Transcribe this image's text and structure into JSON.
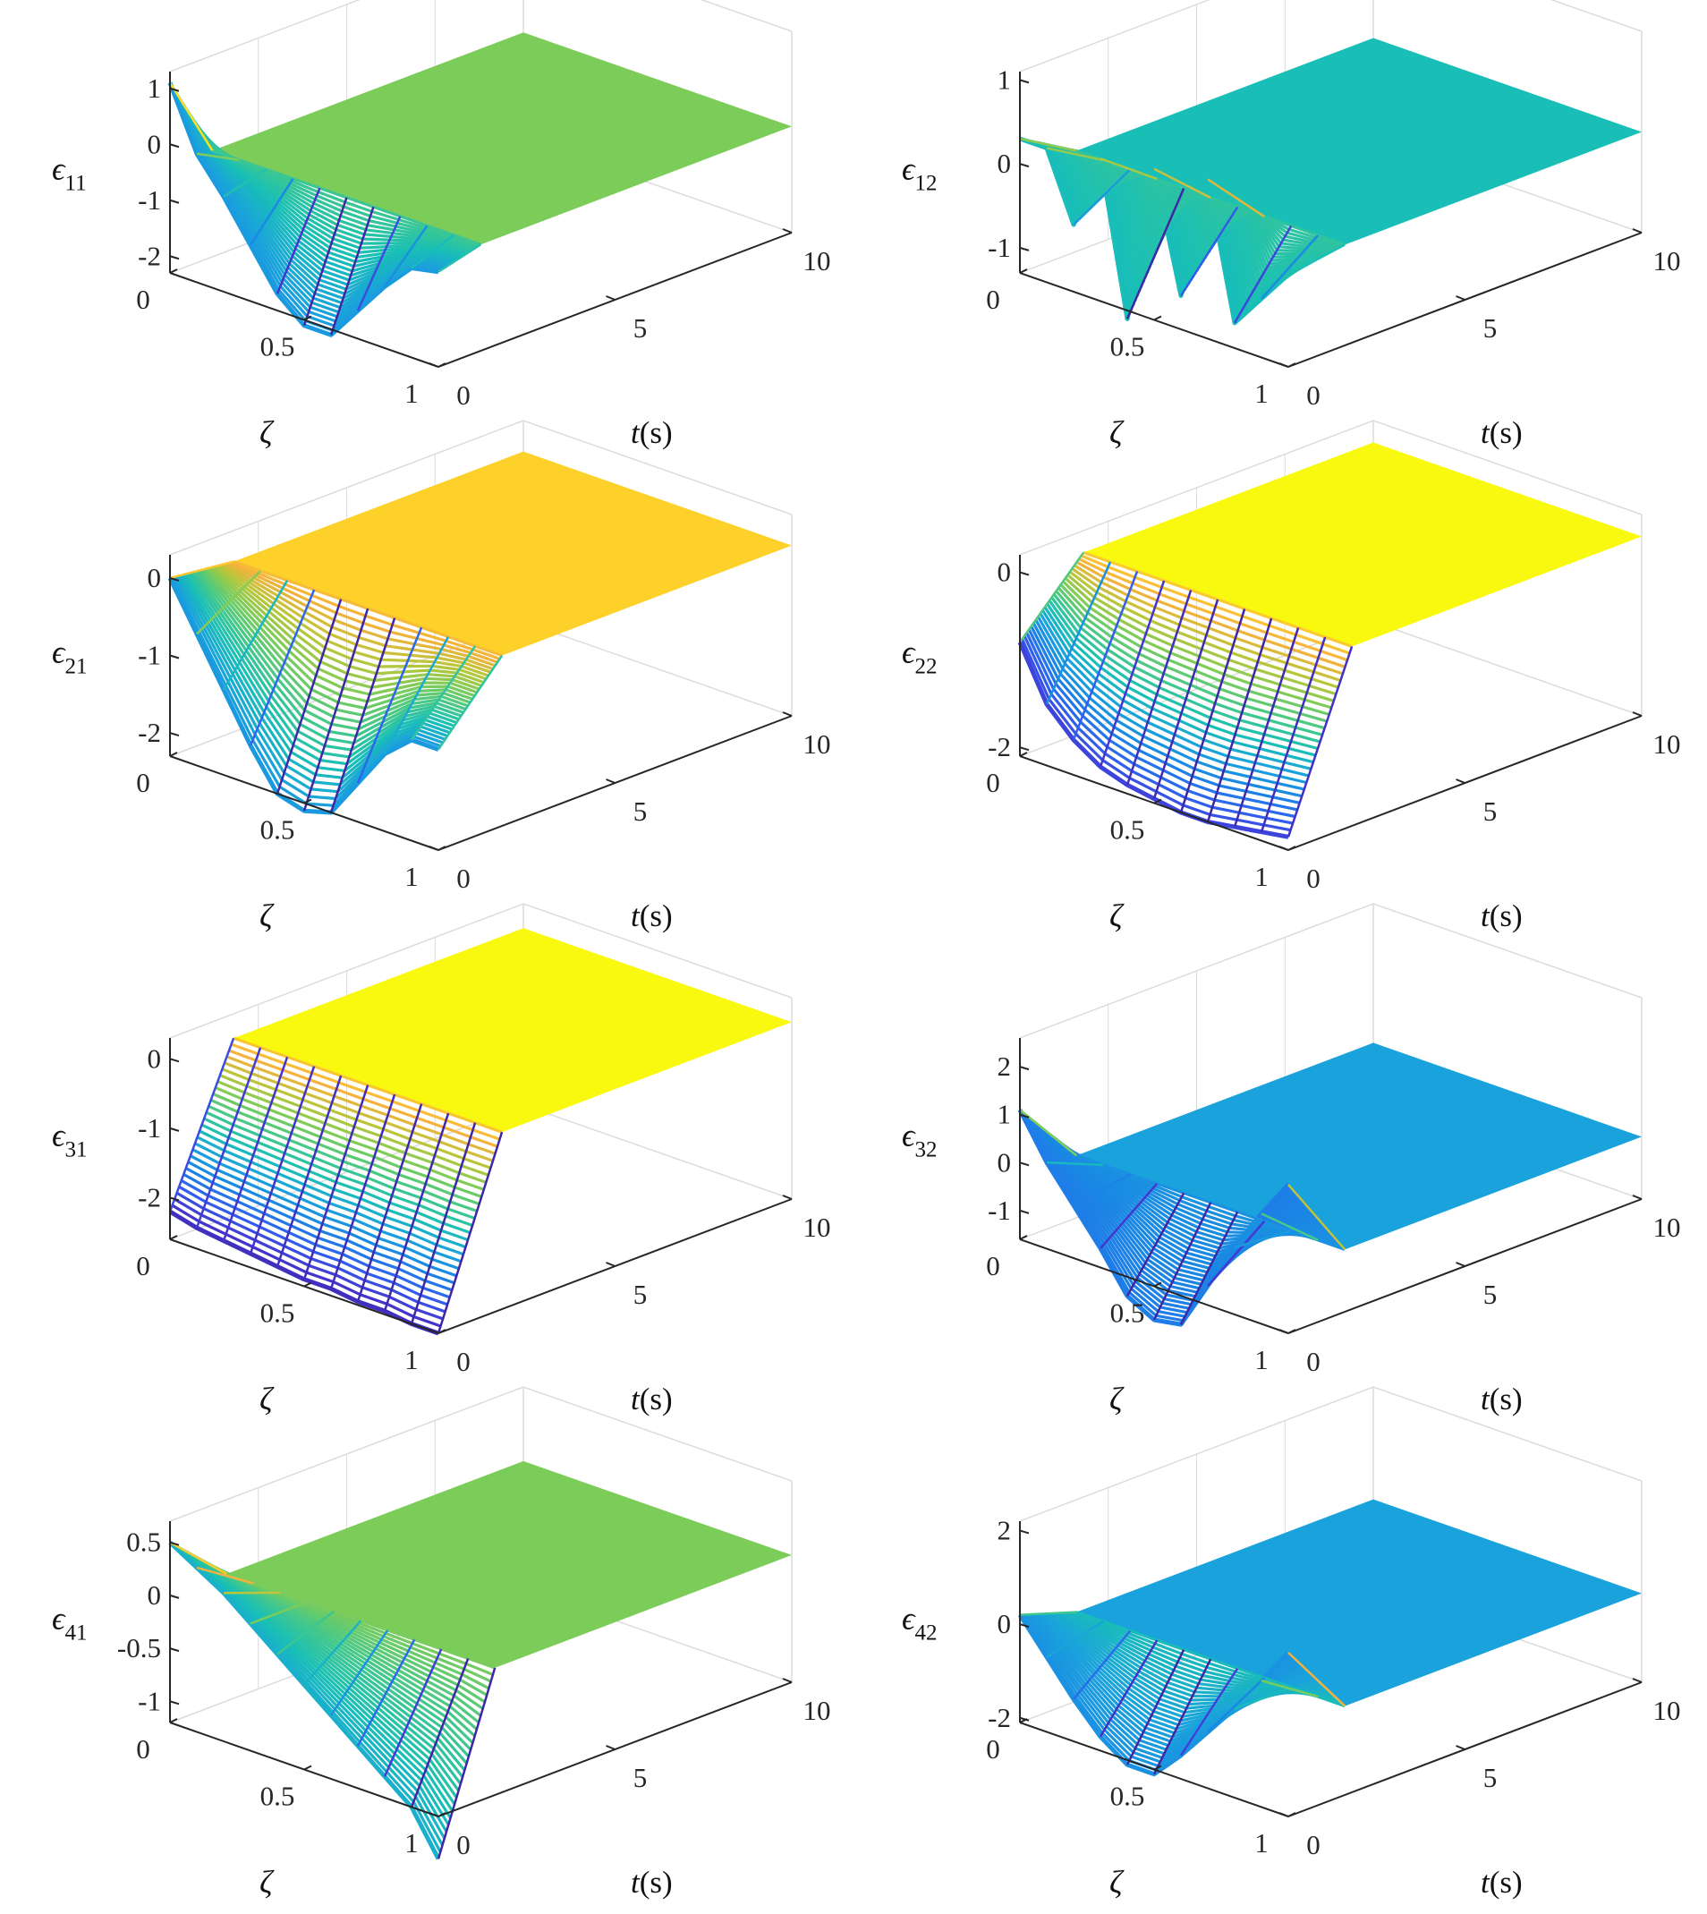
{
  "figure": {
    "colors": {
      "plum": "#3e26a8",
      "blue": "#2f62f0",
      "sky": "#1aa2dc",
      "teal": "#19bfb6",
      "green": "#7ccc5a",
      "orange": "#f5b13c",
      "gold": "#fdd02a",
      "yellow": "#f9f910",
      "grid": "#dcdcdc",
      "axis": "#262626"
    }
  },
  "chart_data": [
    {
      "type": "surface",
      "ylabel_symbol": "ϵ",
      "ylabel_subscript": "11",
      "xlabel_symbol": "ζ",
      "xlabel_time": "t",
      "xlabel_unit": "(s)",
      "zeta_ticks": [
        "0",
        "0.5",
        "1"
      ],
      "t_ticks": [
        "0",
        "5",
        "10"
      ],
      "z_ticks": [
        "1",
        "0",
        "-1",
        "-2"
      ],
      "z_range": [
        -2.3,
        1.3
      ],
      "steady_value": -0.4,
      "steady_color": "green",
      "zeta_samples": [
        0,
        0.1,
        0.2,
        0.3,
        0.4,
        0.5,
        0.6,
        0.7,
        0.8,
        0.9,
        1
      ],
      "initial_profile": [
        1.1,
        0.0,
        -0.6,
        -1.3,
        -2.0,
        -2.4,
        -2.4,
        -1.8,
        -1.2,
        -0.7,
        -0.6
      ],
      "settling_time": 1.2
    },
    {
      "type": "surface",
      "ylabel_symbol": "ϵ",
      "ylabel_subscript": "12",
      "xlabel_symbol": "ζ",
      "xlabel_time": "t",
      "xlabel_unit": "(s)",
      "zeta_ticks": [
        "0",
        "0.5",
        "1"
      ],
      "t_ticks": [
        "0",
        "5",
        "10"
      ],
      "z_ticks": [
        "1",
        "0",
        "-1"
      ],
      "z_range": [
        -1.3,
        1.1
      ],
      "steady_value": -0.1,
      "steady_color": "teal",
      "zeta_samples": [
        0,
        0.1,
        0.2,
        0.3,
        0.4,
        0.5,
        0.6,
        0.7,
        0.8,
        0.9,
        1
      ],
      "initial_profile": [
        0.3,
        0.3,
        -0.5,
        0.4,
        -1.4,
        0.5,
        -0.9,
        0.6,
        -1.0,
        -0.6,
        -0.2
      ],
      "settling_time": 1.6
    },
    {
      "type": "surface",
      "ylabel_symbol": "ϵ",
      "ylabel_subscript": "21",
      "xlabel_symbol": "ζ",
      "xlabel_time": "t",
      "xlabel_unit": "(s)",
      "zeta_ticks": [
        "0",
        "0.5",
        "1"
      ],
      "t_ticks": [
        "0",
        "5",
        "10"
      ],
      "z_ticks": [
        "0",
        "-1",
        "-2"
      ],
      "z_range": [
        -2.3,
        0.3
      ],
      "steady_value": -0.1,
      "steady_color": "gold",
      "zeta_samples": [
        0,
        0.1,
        0.2,
        0.3,
        0.4,
        0.5,
        0.6,
        0.7,
        0.8,
        0.9,
        1
      ],
      "initial_profile": [
        0.0,
        -0.6,
        -1.2,
        -1.8,
        -2.3,
        -2.4,
        -2.3,
        -1.8,
        -1.3,
        -1.0,
        -1.0
      ],
      "settling_time": 1.8
    },
    {
      "type": "surface",
      "ylabel_symbol": "ϵ",
      "ylabel_subscript": "22",
      "xlabel_symbol": "ζ",
      "xlabel_time": "t",
      "xlabel_unit": "(s)",
      "zeta_ticks": [
        "0",
        "0.5",
        "1"
      ],
      "t_ticks": [
        "0",
        "5",
        "10"
      ],
      "z_ticks": [
        "0",
        "-2"
      ],
      "z_range": [
        -2.1,
        0.2
      ],
      "steady_value": -0.05,
      "steady_color": "yellow",
      "zeta_samples": [
        0,
        0.1,
        0.2,
        0.3,
        0.4,
        0.5,
        0.6,
        0.7,
        0.8,
        0.9,
        1
      ],
      "initial_profile": [
        -0.8,
        -1.4,
        -1.7,
        -1.9,
        -2.0,
        -2.05,
        -2.1,
        -2.1,
        -2.05,
        -2.0,
        -1.95
      ],
      "settling_time": 1.8
    },
    {
      "type": "surface",
      "ylabel_symbol": "ϵ",
      "ylabel_subscript": "31",
      "xlabel_symbol": "ζ",
      "xlabel_time": "t",
      "xlabel_unit": "(s)",
      "zeta_ticks": [
        "0",
        "0.5",
        "1"
      ],
      "t_ticks": [
        "0",
        "5",
        "10"
      ],
      "z_ticks": [
        "0",
        "-1",
        "-2"
      ],
      "z_range": [
        -2.6,
        0.3
      ],
      "steady_value": -0.05,
      "steady_color": "yellow",
      "zeta_samples": [
        0,
        0.1,
        0.2,
        0.3,
        0.4,
        0.5,
        0.6,
        0.7,
        0.8,
        0.9,
        1
      ],
      "initial_profile": [
        -2.2,
        -2.3,
        -2.35,
        -2.4,
        -2.45,
        -2.5,
        -2.5,
        -2.55,
        -2.55,
        -2.6,
        -2.6
      ],
      "settling_time": 1.8
    },
    {
      "type": "surface",
      "ylabel_symbol": "ϵ",
      "ylabel_subscript": "32",
      "xlabel_symbol": "ζ",
      "xlabel_time": "t",
      "xlabel_unit": "(s)",
      "zeta_ticks": [
        "0",
        "0.5",
        "1"
      ],
      "t_ticks": [
        "0",
        "5",
        "10"
      ],
      "z_ticks": [
        "2",
        "1",
        "0",
        "-1"
      ],
      "z_range": [
        -1.6,
        2.6
      ],
      "steady_value": -0.3,
      "steady_color": "sky",
      "zeta_samples": [
        0,
        0.1,
        0.2,
        0.3,
        0.4,
        0.5,
        0.6,
        0.7,
        0.8,
        0.9,
        1
      ],
      "initial_profile": [
        1.1,
        0.2,
        -0.5,
        -1.2,
        -2.0,
        -2.3,
        -2.2,
        -1.2,
        -0.2,
        0.7,
        1.5
      ],
      "settling_time": 1.6
    },
    {
      "type": "surface",
      "ylabel_symbol": "ϵ",
      "ylabel_subscript": "41",
      "xlabel_symbol": "ζ",
      "xlabel_time": "t",
      "xlabel_unit": "(s)",
      "zeta_ticks": [
        "0",
        "0.5",
        "1"
      ],
      "t_ticks": [
        "0",
        "5",
        "10"
      ],
      "z_ticks": [
        "0.5",
        "0",
        "-0.5",
        "-1"
      ],
      "z_range": [
        -1.2,
        0.7
      ],
      "steady_value": 0.0,
      "steady_color": "green",
      "zeta_samples": [
        0,
        0.1,
        0.2,
        0.3,
        0.4,
        0.5,
        0.6,
        0.7,
        0.8,
        0.9,
        1
      ],
      "initial_profile": [
        0.5,
        0.35,
        0.2,
        0.0,
        -0.2,
        -0.4,
        -0.6,
        -0.8,
        -1.0,
        -1.2,
        -1.6
      ],
      "settling_time": 1.6
    },
    {
      "type": "surface",
      "ylabel_symbol": "ϵ",
      "ylabel_subscript": "42",
      "xlabel_symbol": "ζ",
      "xlabel_time": "t",
      "xlabel_unit": "(s)",
      "zeta_ticks": [
        "0",
        "0.5",
        "1"
      ],
      "t_ticks": [
        "0",
        "5",
        "10"
      ],
      "z_ticks": [
        "2",
        "0",
        "-2"
      ],
      "z_range": [
        -2.1,
        2.2
      ],
      "steady_value": -0.2,
      "steady_color": "sky",
      "zeta_samples": [
        0,
        0.1,
        0.2,
        0.3,
        0.4,
        0.5,
        0.6,
        0.7,
        0.8,
        0.9,
        1
      ],
      "initial_profile": [
        0.2,
        -0.5,
        -1.2,
        -1.8,
        -2.2,
        -2.2,
        -1.6,
        -0.9,
        -0.2,
        0.6,
        1.4
      ],
      "settling_time": 1.6
    }
  ]
}
